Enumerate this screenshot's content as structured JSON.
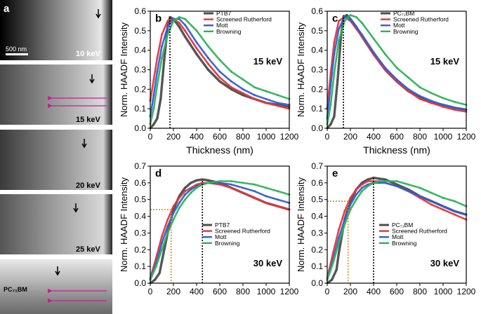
{
  "figure": {
    "colors": {
      "ptb7": "#4d4d4d",
      "pcbm": "#4d4d4d",
      "screened_rutherford": "#e8343a",
      "mott": "#2f5fd8",
      "browning": "#2fb35a",
      "dashed_black": "#000000",
      "dashed_orange": "#d98a1c",
      "arrow_magenta": "#c0208f"
    },
    "images": [
      {
        "label": "a",
        "energy": "10 keV",
        "scalebar": "500 nm"
      },
      {
        "energy": "15 keV"
      },
      {
        "energy": "20 keV"
      },
      {
        "energy": "25 keV"
      },
      {
        "energy": "",
        "material": "PC₇₁BM"
      }
    ]
  },
  "chart_data": [
    {
      "id": "b",
      "type": "line",
      "panel_label": "b",
      "energy_label": "15 keV",
      "xlabel": "Thickness (nm)",
      "ylabel": "Norm. HAADF Intensity",
      "xlim": [
        0,
        1200
      ],
      "ylim": [
        0,
        0.6
      ],
      "xticks": [
        0,
        200,
        400,
        600,
        800,
        1000,
        1200
      ],
      "yticks": [
        0.0,
        0.1,
        0.2,
        0.3,
        0.4,
        0.5,
        0.6
      ],
      "ytick_labels": [
        "0.0",
        "0.1",
        "0.2",
        "0.3",
        "0.4",
        "0.5",
        "0.6"
      ],
      "legend": [
        "PTB7",
        "Screened Rutherford",
        "Mott",
        "Browning"
      ],
      "legend_position": "top-right",
      "vline_x": 170,
      "series": [
        {
          "name": "PTB7",
          "color_key": "ptb7",
          "x": [
            0,
            30,
            60,
            90,
            120,
            150,
            170,
            200,
            250,
            300,
            400,
            500,
            600,
            700,
            800,
            900,
            1000,
            1100,
            1200
          ],
          "y": [
            0.0,
            0.02,
            0.05,
            0.15,
            0.35,
            0.52,
            0.57,
            0.56,
            0.52,
            0.47,
            0.38,
            0.3,
            0.24,
            0.2,
            0.17,
            0.15,
            0.13,
            0.12,
            0.11
          ]
        },
        {
          "name": "Screened Rutherford",
          "color_key": "screened_rutherford",
          "x": [
            0,
            30,
            60,
            100,
            150,
            200,
            250,
            300,
            400,
            500,
            600,
            700,
            800,
            900,
            1000,
            1100,
            1200
          ],
          "y": [
            0.14,
            0.25,
            0.36,
            0.48,
            0.55,
            0.56,
            0.54,
            0.5,
            0.41,
            0.33,
            0.26,
            0.21,
            0.18,
            0.15,
            0.13,
            0.115,
            0.1
          ]
        },
        {
          "name": "Mott",
          "color_key": "mott",
          "x": [
            0,
            30,
            60,
            100,
            150,
            200,
            250,
            300,
            400,
            500,
            600,
            700,
            800,
            900,
            1000,
            1100,
            1200
          ],
          "y": [
            0.06,
            0.17,
            0.29,
            0.42,
            0.52,
            0.56,
            0.56,
            0.53,
            0.44,
            0.36,
            0.29,
            0.24,
            0.2,
            0.17,
            0.15,
            0.13,
            0.12
          ]
        },
        {
          "name": "Browning",
          "color_key": "browning",
          "x": [
            0,
            30,
            60,
            100,
            150,
            200,
            250,
            300,
            400,
            500,
            600,
            700,
            800,
            900,
            1000,
            1100,
            1200
          ],
          "y": [
            0.02,
            0.1,
            0.22,
            0.36,
            0.48,
            0.55,
            0.57,
            0.56,
            0.5,
            0.42,
            0.35,
            0.29,
            0.25,
            0.21,
            0.19,
            0.17,
            0.15
          ]
        }
      ]
    },
    {
      "id": "c",
      "type": "line",
      "panel_label": "c",
      "energy_label": "15 keV",
      "xlabel": "Thickness (nm)",
      "ylabel": "Norm. HAADF Intensity",
      "xlim": [
        0,
        1200
      ],
      "ylim": [
        0,
        0.6
      ],
      "xticks": [
        0,
        200,
        400,
        600,
        800,
        1000,
        1200
      ],
      "yticks": [
        0.0,
        0.1,
        0.2,
        0.3,
        0.4,
        0.5,
        0.6
      ],
      "ytick_labels": [
        "0.0",
        "0.1",
        "0.2",
        "0.3",
        "0.4",
        "0.5",
        "0.6"
      ],
      "legend": [
        "PC₇₁BM",
        "Screened Rutherford",
        "Mott",
        "Browning"
      ],
      "legend_position": "top-right",
      "vline_x": 140,
      "series": [
        {
          "name": "PC₇₁BM",
          "color_key": "pcbm",
          "x": [
            0,
            30,
            60,
            90,
            120,
            140,
            170,
            200,
            250,
            300,
            400,
            500,
            600,
            700,
            800,
            900,
            1000,
            1100,
            1200
          ],
          "y": [
            0.0,
            0.02,
            0.06,
            0.25,
            0.48,
            0.57,
            0.58,
            0.56,
            0.52,
            0.47,
            0.38,
            0.3,
            0.24,
            0.19,
            0.16,
            0.13,
            0.12,
            0.105,
            0.095
          ]
        },
        {
          "name": "Screened Rutherford",
          "color_key": "screened_rutherford",
          "x": [
            0,
            30,
            60,
            100,
            150,
            200,
            250,
            300,
            400,
            500,
            600,
            700,
            800,
            900,
            1000,
            1100,
            1200
          ],
          "y": [
            0.1,
            0.28,
            0.44,
            0.55,
            0.57,
            0.55,
            0.51,
            0.47,
            0.38,
            0.3,
            0.24,
            0.19,
            0.15,
            0.13,
            0.11,
            0.095,
            0.085
          ]
        },
        {
          "name": "Mott",
          "color_key": "mott",
          "x": [
            0,
            30,
            60,
            100,
            150,
            200,
            250,
            300,
            400,
            500,
            600,
            700,
            800,
            900,
            1000,
            1100,
            1200
          ],
          "y": [
            0.05,
            0.22,
            0.38,
            0.51,
            0.57,
            0.56,
            0.52,
            0.48,
            0.39,
            0.31,
            0.25,
            0.2,
            0.165,
            0.14,
            0.12,
            0.105,
            0.095
          ]
        },
        {
          "name": "Browning",
          "color_key": "browning",
          "x": [
            0,
            30,
            60,
            100,
            150,
            200,
            250,
            300,
            400,
            500,
            600,
            700,
            800,
            900,
            1000,
            1100,
            1200
          ],
          "y": [
            0.02,
            0.12,
            0.28,
            0.45,
            0.55,
            0.58,
            0.57,
            0.54,
            0.46,
            0.38,
            0.31,
            0.26,
            0.21,
            0.18,
            0.155,
            0.135,
            0.12
          ]
        }
      ]
    },
    {
      "id": "d",
      "type": "line",
      "panel_label": "d",
      "energy_label": "30 keV",
      "xlabel": "",
      "ylabel": "Norm. HAADF Intensity",
      "xlim": [
        0,
        1200
      ],
      "ylim": [
        0,
        0.7
      ],
      "xticks": [
        0,
        200,
        400,
        600,
        800,
        1000,
        1200
      ],
      "yticks": [
        0.0,
        0.1,
        0.2,
        0.3,
        0.4,
        0.5,
        0.6,
        0.7
      ],
      "ytick_labels": [
        "0.0",
        "0.1",
        "0.2",
        "0.3",
        "0.4",
        "0.5",
        "0.6",
        "0.7"
      ],
      "legend": [
        "PTB7",
        "Screened Rutherford",
        "Mott",
        "Browning"
      ],
      "legend_position": "bottom-center",
      "vline_x": 450,
      "hline_y": 0.44,
      "orange_vline_x": 180,
      "series": [
        {
          "name": "PTB7",
          "color_key": "ptb7",
          "x": [
            0,
            40,
            80,
            100,
            150,
            200,
            250,
            300,
            350,
            400,
            450,
            500,
            600,
            700,
            800,
            900,
            1000,
            1100,
            1200
          ],
          "y": [
            0.0,
            0.02,
            0.06,
            0.13,
            0.3,
            0.44,
            0.52,
            0.57,
            0.6,
            0.615,
            0.62,
            0.615,
            0.6,
            0.57,
            0.54,
            0.51,
            0.48,
            0.46,
            0.44
          ]
        },
        {
          "name": "Screened Rutherford",
          "color_key": "screened_rutherford",
          "x": [
            0,
            50,
            100,
            150,
            200,
            250,
            300,
            350,
            400,
            450,
            500,
            600,
            700,
            800,
            900,
            1000,
            1100,
            1200
          ],
          "y": [
            0.03,
            0.15,
            0.28,
            0.38,
            0.46,
            0.51,
            0.55,
            0.57,
            0.59,
            0.6,
            0.6,
            0.59,
            0.57,
            0.54,
            0.51,
            0.48,
            0.46,
            0.44
          ]
        },
        {
          "name": "Mott",
          "color_key": "mott",
          "x": [
            0,
            50,
            100,
            150,
            200,
            250,
            300,
            350,
            400,
            450,
            500,
            600,
            700,
            800,
            900,
            1000,
            1100,
            1200
          ],
          "y": [
            0.02,
            0.12,
            0.24,
            0.34,
            0.42,
            0.48,
            0.53,
            0.56,
            0.58,
            0.59,
            0.6,
            0.6,
            0.59,
            0.57,
            0.55,
            0.52,
            0.5,
            0.48
          ]
        },
        {
          "name": "Browning",
          "color_key": "browning",
          "x": [
            0,
            50,
            100,
            150,
            200,
            250,
            300,
            350,
            400,
            450,
            500,
            600,
            700,
            800,
            900,
            1000,
            1100,
            1200
          ],
          "y": [
            0.02,
            0.1,
            0.2,
            0.3,
            0.38,
            0.45,
            0.5,
            0.54,
            0.57,
            0.59,
            0.6,
            0.61,
            0.61,
            0.6,
            0.59,
            0.57,
            0.55,
            0.53
          ]
        }
      ]
    },
    {
      "id": "e",
      "type": "line",
      "panel_label": "e",
      "energy_label": "30 keV",
      "xlabel": "",
      "ylabel": "Norm. HAADF Intensity",
      "xlim": [
        0,
        1200
      ],
      "ylim": [
        0,
        0.7
      ],
      "xticks": [
        0,
        200,
        400,
        600,
        800,
        1000,
        1200
      ],
      "yticks": [
        0.0,
        0.1,
        0.2,
        0.3,
        0.4,
        0.5,
        0.6,
        0.7
      ],
      "ytick_labels": [
        "0.0",
        "0.1",
        "0.2",
        "0.3",
        "0.4",
        "0.5",
        "0.6",
        "0.7"
      ],
      "legend": [
        "PC₇₁BM",
        "Screened Rutherford",
        "Mott",
        "Browning"
      ],
      "legend_position": "bottom-center",
      "vline_x": 400,
      "hline_y": 0.49,
      "orange_vline_x": 180,
      "series": [
        {
          "name": "PC₇₁BM",
          "color_key": "pcbm",
          "x": [
            0,
            40,
            80,
            100,
            150,
            200,
            250,
            300,
            350,
            400,
            450,
            500,
            600,
            700,
            800,
            900,
            1000,
            1100,
            1200
          ],
          "y": [
            0.0,
            0.02,
            0.08,
            0.18,
            0.38,
            0.49,
            0.56,
            0.6,
            0.62,
            0.63,
            0.625,
            0.62,
            0.59,
            0.56,
            0.52,
            0.49,
            0.46,
            0.43,
            0.41
          ]
        },
        {
          "name": "Screened Rutherford",
          "color_key": "screened_rutherford",
          "x": [
            0,
            50,
            100,
            150,
            200,
            250,
            300,
            350,
            400,
            450,
            500,
            600,
            700,
            800,
            900,
            1000,
            1100,
            1200
          ],
          "y": [
            0.03,
            0.18,
            0.32,
            0.43,
            0.51,
            0.56,
            0.59,
            0.61,
            0.61,
            0.61,
            0.6,
            0.58,
            0.55,
            0.51,
            0.47,
            0.44,
            0.41,
            0.38
          ]
        },
        {
          "name": "Mott",
          "color_key": "mott",
          "x": [
            0,
            50,
            100,
            150,
            200,
            250,
            300,
            350,
            400,
            450,
            500,
            600,
            700,
            800,
            900,
            1000,
            1100,
            1200
          ],
          "y": [
            0.02,
            0.14,
            0.27,
            0.38,
            0.47,
            0.53,
            0.57,
            0.59,
            0.6,
            0.6,
            0.6,
            0.58,
            0.55,
            0.52,
            0.49,
            0.46,
            0.43,
            0.41
          ]
        },
        {
          "name": "Browning",
          "color_key": "browning",
          "x": [
            0,
            50,
            100,
            150,
            200,
            250,
            300,
            350,
            400,
            450,
            500,
            600,
            700,
            800,
            900,
            1000,
            1100,
            1200
          ],
          "y": [
            0.02,
            0.12,
            0.24,
            0.35,
            0.44,
            0.5,
            0.55,
            0.58,
            0.6,
            0.61,
            0.61,
            0.61,
            0.59,
            0.57,
            0.54,
            0.51,
            0.49,
            0.46
          ]
        }
      ]
    }
  ]
}
